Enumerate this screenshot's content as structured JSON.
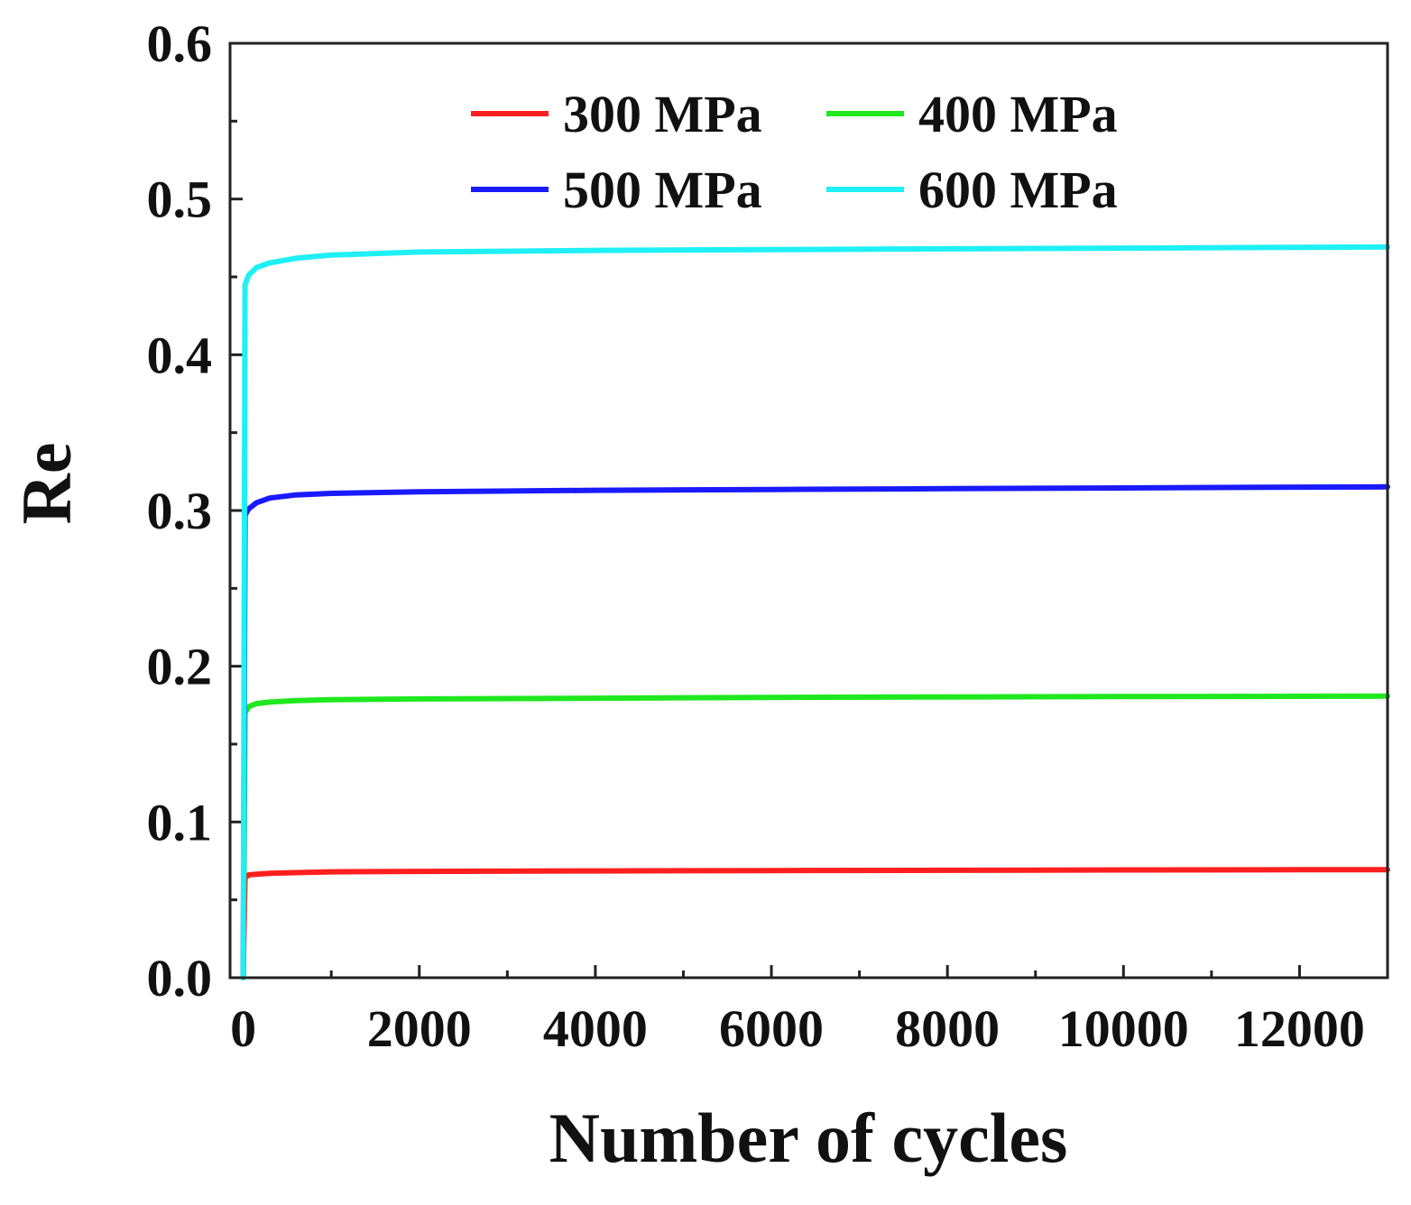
{
  "chart_data": {
    "type": "line",
    "title": "",
    "xlabel": "Number of cycles",
    "ylabel": "Re",
    "xlim": [
      -150,
      13000
    ],
    "ylim": [
      0.0,
      0.6
    ],
    "x_ticks": [
      0,
      2000,
      4000,
      6000,
      8000,
      10000,
      12000
    ],
    "x_tick_labels": [
      "0",
      "2000",
      "4000",
      "6000",
      "8000",
      "10000",
      "12000"
    ],
    "y_ticks": [
      0.0,
      0.1,
      0.2,
      0.3,
      0.4,
      0.5,
      0.6
    ],
    "y_tick_labels": [
      "0.0",
      "0.1",
      "0.2",
      "0.3",
      "0.4",
      "0.5",
      "0.6"
    ],
    "grid": false,
    "legend_position": "top",
    "series": [
      {
        "name": "300 MPa",
        "color": "#ff1f1f",
        "x": [
          0,
          20,
          60,
          150,
          300,
          600,
          1000,
          2000,
          4000,
          6000,
          8000,
          10000,
          12000,
          13000
        ],
        "y": [
          0.0,
          0.064,
          0.066,
          0.0665,
          0.067,
          0.0675,
          0.068,
          0.0683,
          0.0686,
          0.0688,
          0.069,
          0.0692,
          0.0693,
          0.0694
        ]
      },
      {
        "name": "400 MPa",
        "color": "#1fe81f",
        "x": [
          0,
          20,
          60,
          150,
          300,
          600,
          1000,
          2000,
          4000,
          6000,
          8000,
          10000,
          12000,
          13000
        ],
        "y": [
          0.0,
          0.17,
          0.174,
          0.176,
          0.177,
          0.178,
          0.1785,
          0.179,
          0.1795,
          0.18,
          0.1803,
          0.1805,
          0.1807,
          0.1808
        ]
      },
      {
        "name": "500 MPa",
        "color": "#1a1aff",
        "x": [
          0,
          20,
          60,
          150,
          300,
          600,
          1000,
          2000,
          4000,
          6000,
          8000,
          10000,
          12000,
          13000
        ],
        "y": [
          0.0,
          0.297,
          0.301,
          0.305,
          0.308,
          0.31,
          0.311,
          0.312,
          0.313,
          0.3135,
          0.314,
          0.3145,
          0.315,
          0.3152
        ]
      },
      {
        "name": "600 MPa",
        "color": "#1ff0f5",
        "x": [
          0,
          20,
          60,
          150,
          300,
          600,
          1000,
          2000,
          4000,
          6000,
          8000,
          10000,
          12000,
          13000
        ],
        "y": [
          0.0,
          0.445,
          0.451,
          0.456,
          0.459,
          0.462,
          0.464,
          0.466,
          0.467,
          0.4675,
          0.468,
          0.4685,
          0.469,
          0.4692
        ]
      }
    ]
  }
}
